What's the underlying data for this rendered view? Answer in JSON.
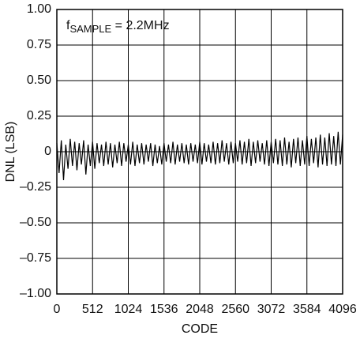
{
  "chart_data": {
    "type": "line",
    "annotation": {
      "main": "f",
      "sub": "SAMPLE",
      "rest": " = 2.2MHz"
    },
    "x_label": "CODE",
    "y_label": "DNL (LSB)",
    "xlim": [
      0,
      4096
    ],
    "xticks": [
      0,
      512,
      1024,
      1536,
      2048,
      2560,
      3072,
      3584,
      4096
    ],
    "ylim": [
      -1,
      1
    ],
    "yticks": [
      {
        "value": 1,
        "label": "1.00"
      },
      {
        "value": 0.75,
        "label": "0.75"
      },
      {
        "value": 0.5,
        "label": "0.50"
      },
      {
        "value": 0.25,
        "label": "0.25"
      },
      0,
      {
        "value": -0.25,
        "label": "–0.25"
      },
      {
        "value": -0.5,
        "label": "–0.50"
      },
      {
        "value": -0.75,
        "label": "–0.75"
      },
      {
        "value": -1,
        "label": "–1.00"
      }
    ],
    "grid": true,
    "series": [
      {
        "color": "#000000",
        "x": [
          0,
          32,
          64,
          96,
          128,
          160,
          192,
          224,
          256,
          288,
          320,
          352,
          384,
          416,
          448,
          480,
          512,
          544,
          576,
          608,
          640,
          672,
          704,
          736,
          768,
          800,
          832,
          864,
          896,
          928,
          960,
          992,
          1024,
          1056,
          1088,
          1120,
          1152,
          1184,
          1216,
          1248,
          1280,
          1312,
          1344,
          1376,
          1408,
          1440,
          1472,
          1504,
          1536,
          1568,
          1600,
          1632,
          1664,
          1696,
          1728,
          1760,
          1792,
          1824,
          1856,
          1888,
          1920,
          1952,
          1984,
          2016,
          2048,
          2080,
          2112,
          2144,
          2176,
          2208,
          2240,
          2272,
          2304,
          2336,
          2368,
          2400,
          2432,
          2464,
          2496,
          2528,
          2560,
          2592,
          2624,
          2656,
          2688,
          2720,
          2752,
          2784,
          2816,
          2848,
          2880,
          2912,
          2944,
          2976,
          3008,
          3040,
          3072,
          3104,
          3136,
          3168,
          3200,
          3232,
          3264,
          3296,
          3328,
          3360,
          3392,
          3424,
          3456,
          3488,
          3520,
          3552,
          3584,
          3616,
          3648,
          3680,
          3712,
          3744,
          3776,
          3808,
          3840,
          3872,
          3904,
          3936,
          3968,
          4000,
          4032,
          4064,
          4096
        ],
        "values": [
          0.06,
          -0.15,
          0.08,
          -0.2,
          0.05,
          -0.12,
          0.09,
          -0.1,
          0.07,
          -0.13,
          0.06,
          -0.09,
          0.08,
          -0.16,
          0.05,
          -0.1,
          0.07,
          -0.12,
          0.06,
          -0.08,
          0.05,
          -0.1,
          0.07,
          -0.09,
          0.06,
          -0.11,
          0.05,
          -0.08,
          0.07,
          -0.1,
          0.06,
          -0.07,
          0.05,
          -0.09,
          0.07,
          -0.1,
          0.05,
          -0.08,
          0.06,
          -0.09,
          0.05,
          -0.07,
          0.06,
          -0.1,
          0.05,
          -0.08,
          0.04,
          -0.09,
          0.06,
          -0.07,
          0.05,
          -0.08,
          0.07,
          -0.09,
          0.05,
          -0.07,
          0.06,
          -0.08,
          0.05,
          -0.09,
          0.06,
          -0.07,
          0.05,
          -0.08,
          0.07,
          -0.09,
          0.06,
          -0.07,
          0.05,
          -0.08,
          0.07,
          -0.09,
          0.06,
          -0.08,
          0.08,
          -0.07,
          0.06,
          -0.09,
          0.07,
          -0.08,
          0.06,
          -0.07,
          0.08,
          -0.09,
          0.07,
          -0.08,
          0.09,
          -0.1,
          0.07,
          -0.08,
          0.08,
          -0.07,
          0.06,
          -0.09,
          0.08,
          -0.1,
          0.07,
          -0.08,
          0.09,
          -0.09,
          0.08,
          -0.1,
          0.1,
          -0.09,
          0.07,
          -0.11,
          0.09,
          -0.08,
          0.1,
          -0.1,
          0.08,
          -0.09,
          0.11,
          -0.1,
          0.09,
          -0.08,
          0.1,
          -0.11,
          0.12,
          -0.09,
          0.1,
          -0.1,
          0.13,
          -0.09,
          0.11,
          -0.1,
          0.14,
          -0.09,
          0.12
        ]
      }
    ]
  }
}
